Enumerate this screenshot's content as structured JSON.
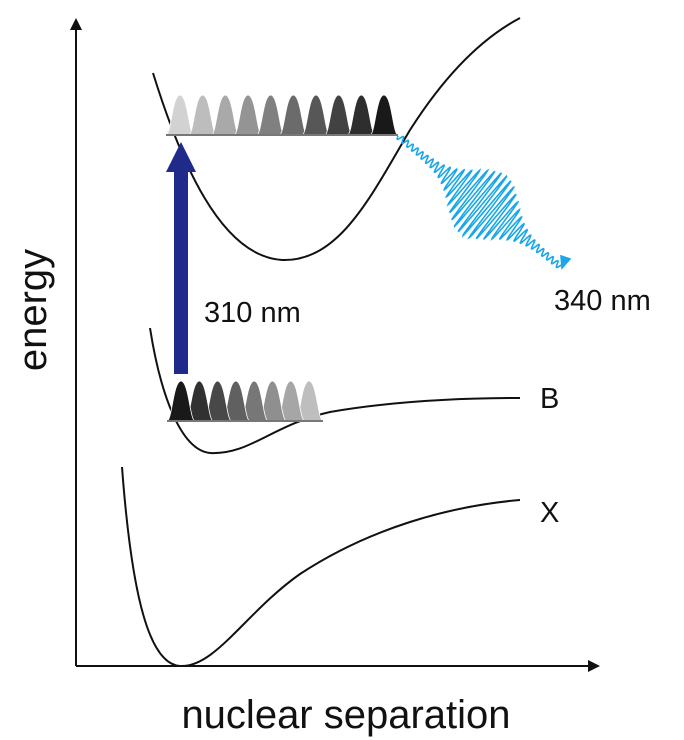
{
  "axes": {
    "x_label": "nuclear separation",
    "y_label": "energy"
  },
  "curves": {
    "ground": {
      "label": "X"
    },
    "bound": {
      "label": "B"
    },
    "upper": {
      "label": ""
    }
  },
  "transitions": {
    "absorption": {
      "label": "310 nm",
      "color": "#1f2a8a"
    },
    "emission": {
      "label": "340 nm",
      "color": "#1aa7e8"
    }
  },
  "wavepackets": {
    "lower": {
      "peak_count": 8
    },
    "upper": {
      "peak_count": 10
    }
  }
}
